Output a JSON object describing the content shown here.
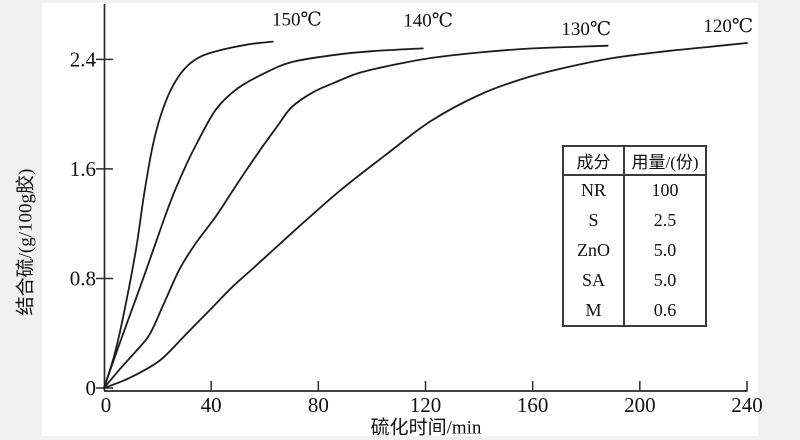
{
  "figure": {
    "background_color": "#f0f1f0",
    "panel_color": "#ffffff",
    "line_color": "#1c1c1c",
    "axis_color": "#2a2a2a"
  },
  "chart_data": {
    "type": "line",
    "title": "",
    "xlabel": "硫化时间/min",
    "ylabel": "结合硫/(g/100g胶)",
    "xlim": [
      0,
      240
    ],
    "ylim": [
      0,
      2.84
    ],
    "xticks": [
      0,
      40,
      80,
      120,
      160,
      200,
      240
    ],
    "yticks": [
      0,
      0.8,
      1.6,
      2.4
    ],
    "grid": false,
    "series": [
      {
        "name": "150℃",
        "label_anchor": {
          "t": 72,
          "v": 2.7
        },
        "points": [
          [
            0,
            0
          ],
          [
            4,
            0.25
          ],
          [
            8,
            0.6
          ],
          [
            12,
            1.02
          ],
          [
            15,
            1.42
          ],
          [
            18,
            1.75
          ],
          [
            21,
            1.98
          ],
          [
            25,
            2.18
          ],
          [
            30,
            2.33
          ],
          [
            36,
            2.42
          ],
          [
            44,
            2.47
          ],
          [
            54,
            2.51
          ],
          [
            63,
            2.53
          ]
        ]
      },
      {
        "name": "140℃",
        "label_anchor": {
          "t": 121,
          "v": 2.69
        },
        "points": [
          [
            0,
            0
          ],
          [
            5,
            0.28
          ],
          [
            10,
            0.55
          ],
          [
            15,
            0.82
          ],
          [
            20,
            1.1
          ],
          [
            25,
            1.37
          ],
          [
            30,
            1.6
          ],
          [
            35,
            1.8
          ],
          [
            42,
            2.04
          ],
          [
            50,
            2.19
          ],
          [
            60,
            2.3
          ],
          [
            70,
            2.38
          ],
          [
            85,
            2.43
          ],
          [
            100,
            2.46
          ],
          [
            119,
            2.48
          ]
        ]
      },
      {
        "name": "130℃",
        "label_anchor": {
          "t": 180,
          "v": 2.63
        },
        "points": [
          [
            0,
            0
          ],
          [
            6,
            0.14
          ],
          [
            12,
            0.27
          ],
          [
            17,
            0.39
          ],
          [
            22,
            0.6
          ],
          [
            28,
            0.86
          ],
          [
            34,
            1.05
          ],
          [
            42,
            1.26
          ],
          [
            50,
            1.5
          ],
          [
            58,
            1.73
          ],
          [
            65,
            1.92
          ],
          [
            70,
            2.05
          ],
          [
            78,
            2.16
          ],
          [
            86,
            2.23
          ],
          [
            95,
            2.3
          ],
          [
            108,
            2.36
          ],
          [
            122,
            2.41
          ],
          [
            140,
            2.45
          ],
          [
            160,
            2.48
          ],
          [
            188,
            2.5
          ]
        ]
      },
      {
        "name": "120℃",
        "label_anchor": {
          "t": 233,
          "v": 2.65
        },
        "points": [
          [
            0,
            0
          ],
          [
            8,
            0.06
          ],
          [
            16,
            0.14
          ],
          [
            22,
            0.22
          ],
          [
            30,
            0.38
          ],
          [
            40,
            0.58
          ],
          [
            48,
            0.74
          ],
          [
            56,
            0.88
          ],
          [
            70,
            1.13
          ],
          [
            88,
            1.44
          ],
          [
            105,
            1.7
          ],
          [
            122,
            1.95
          ],
          [
            140,
            2.14
          ],
          [
            155,
            2.25
          ],
          [
            170,
            2.33
          ],
          [
            190,
            2.41
          ],
          [
            210,
            2.46
          ],
          [
            225,
            2.49
          ],
          [
            240,
            2.52
          ]
        ]
      }
    ]
  },
  "table": {
    "headers": [
      "成分",
      "用量/(份)"
    ],
    "rows": [
      [
        "NR",
        "100"
      ],
      [
        "S",
        "2.5"
      ],
      [
        "ZnO",
        "5.0"
      ],
      [
        "SA",
        "5.0"
      ],
      [
        "M",
        "0.6"
      ]
    ]
  }
}
